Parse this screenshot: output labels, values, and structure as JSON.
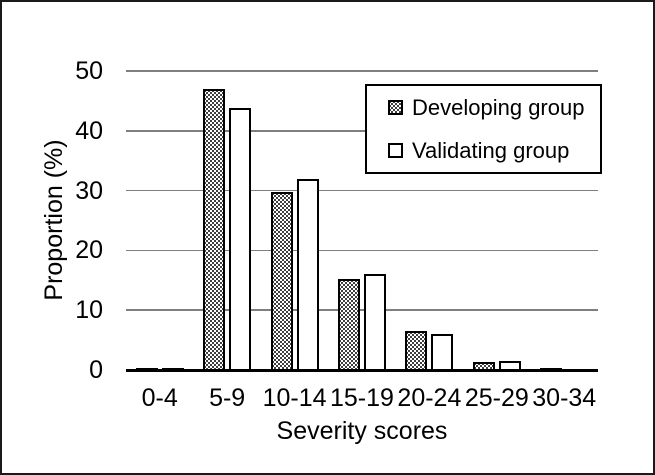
{
  "chart_data": {
    "type": "bar",
    "title": "",
    "xlabel": "Severity scores",
    "ylabel": "Proportion (%)",
    "categories": [
      "0-4",
      "5-9",
      "10-14",
      "15-19",
      "20-24",
      "25-29",
      "30-34"
    ],
    "series": [
      {
        "name": "Developing group",
        "fill": "dotted-pattern",
        "values": [
          0.4,
          47,
          29.7,
          15.3,
          6.5,
          1.4,
          0.35
        ]
      },
      {
        "name": "Validating group",
        "fill": "white",
        "values": [
          0.4,
          43.8,
          32,
          16.1,
          6.1,
          1.5,
          0
        ]
      }
    ],
    "ylim": [
      0,
      50
    ],
    "yticks": [
      0,
      10,
      20,
      30,
      40,
      50
    ],
    "grid": "horizontal",
    "legend_position": "upper-right-inside",
    "colors": {
      "gridline": "#7f7f7f",
      "axis_line": "#000000",
      "bar_border": "#000000",
      "bar_fill": "#ffffff",
      "text": "#000000",
      "background": "#ffffff",
      "figure_border": "#1a1a1a"
    }
  }
}
